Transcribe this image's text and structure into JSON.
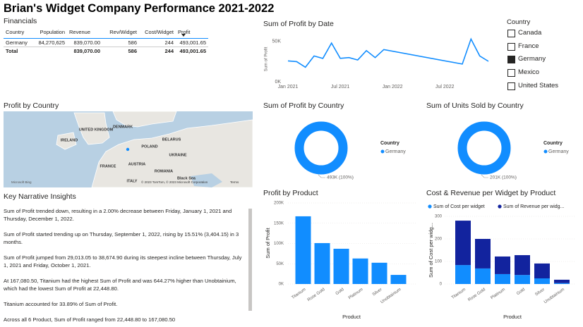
{
  "header": {
    "title": "Brian's Widget Company Performance 2021-2022"
  },
  "table": {
    "title": "Financials",
    "columns": [
      "Country",
      "Population",
      "Revenue",
      "Rev/Widget",
      "Cost/Widget",
      "Profit"
    ],
    "rows": [
      [
        "Germany",
        "84,270,625",
        "839,070.00",
        "586",
        "244",
        "493,001.65"
      ]
    ],
    "total": {
      "label": "Total",
      "revenue": "839,070.00",
      "rev_widget": "586",
      "cost_widget": "244",
      "profit": "493,001.65"
    }
  },
  "slicer": {
    "title": "Country",
    "items": [
      "Canada",
      "France",
      "Germany",
      "Mexico",
      "United States"
    ],
    "selected": [
      false,
      false,
      true,
      false,
      false
    ]
  },
  "map": {
    "title": "Profit by Country",
    "labels": [
      "UNITED KINGDOM",
      "IRELAND",
      "DENMARK",
      "BELARUS",
      "POLAND",
      "UKRAINE",
      "FRANCE",
      "AUSTRIA",
      "ROMANIA",
      "ITALY",
      "Black Sea"
    ],
    "provider": "Microsoft Bing",
    "attribution": "© 2023 TomTom, © 2023 Microsoft Corporation",
    "terms": "Terms"
  },
  "narrative": {
    "title": "Key Narrative Insights",
    "paragraphs": [
      "Sum of Profit trended down, resulting in a 2.00% decrease between Friday, January 1, 2021 and Thursday, December 1, 2022.",
      "Sum of Profit started trending up on Thursday, September 1, 2022, rising by 15.51% (3,404.15) in 3 months.",
      "Sum of Profit jumped from 29,013.05 to 38,674.90 during its steepest incline between Thursday, July 1, 2021 and Friday, October 1, 2021.",
      "At 167,080.50, Titanium had the highest Sum of Profit and was 644.27% higher than Unobtainium, which had the lowest Sum of Profit at 22,448.80.",
      "Titanium accounted for 33.89% of Sum of Profit.",
      "Across all 6 Product, Sum of Profit ranged from 22,448.80 to 167,080.50"
    ]
  },
  "chart_data": [
    {
      "type": "line",
      "title": "Sum of Profit by Date",
      "y_label": "Sum of Profit",
      "color": "#118DFF",
      "x": [
        "2021-01",
        "2021-02",
        "2021-03",
        "2021-04",
        "2021-05",
        "2021-06",
        "2021-07",
        "2021-08",
        "2021-09",
        "2021-10",
        "2021-11",
        "2021-12",
        "2022-09",
        "2022-10",
        "2022-11",
        "2022-12"
      ],
      "values": [
        25869.6,
        25000,
        18000,
        32000,
        29000,
        48000,
        29013.05,
        30000,
        27000,
        38674.9,
        30000,
        40000,
        21948,
        53000,
        32000,
        25352.2
      ],
      "xlim": [
        "2021-01",
        "2022-12"
      ],
      "xticks": [
        {
          "value": "2021-01",
          "label": "Jan 2021"
        },
        {
          "value": "2021-07",
          "label": "Jul 2021"
        },
        {
          "value": "2022-01",
          "label": "Jan 2022"
        },
        {
          "value": "2022-07",
          "label": "Jul 2022"
        }
      ],
      "ylim": [
        0,
        56000
      ],
      "yticks": [
        {
          "value": 0,
          "label": "0K"
        },
        {
          "value": 50000,
          "label": "50K"
        }
      ]
    },
    {
      "type": "donut",
      "title": "Sum of Profit by Country",
      "legend_title": "Country",
      "categories": [
        "Germany"
      ],
      "values": [
        493001.65
      ],
      "value_labels": [
        "493K (100%)"
      ],
      "color": "#118DFF"
    },
    {
      "type": "donut",
      "title": "Sum of Units Sold by Country",
      "legend_title": "Country",
      "categories": [
        "Germany"
      ],
      "values": [
        201000
      ],
      "value_labels": [
        "201K (100%)"
      ],
      "color": "#118DFF"
    },
    {
      "type": "bar",
      "title": "Profit by Product",
      "x_label": "Product",
      "y_label": "Sum of Profit",
      "color": "#118DFF",
      "categories": [
        "Titanium",
        "Rose Gold",
        "Gold",
        "Platinum",
        "Silver",
        "Unobtainium"
      ],
      "values": [
        167080.5,
        101000,
        87000,
        63000,
        52500,
        22448.8
      ],
      "ylim": [
        0,
        200000
      ],
      "yticks": [
        {
          "value": 0,
          "label": "0K"
        },
        {
          "value": 50000,
          "label": "50K"
        },
        {
          "value": 100000,
          "label": "100K"
        },
        {
          "value": 150000,
          "label": "150K"
        },
        {
          "value": 200000,
          "label": "200K"
        }
      ],
      "grid": true
    },
    {
      "type": "stacked_bar",
      "title": "Cost & Revenue per Widget by Product",
      "x_label": "Product",
      "y_label": "Sum of Cost per widg...",
      "categories": [
        "Titanium",
        "Rose Gold",
        "Platinum",
        "Gold",
        "Silver",
        "Unobtainium"
      ],
      "series": [
        {
          "name": "Sum of Cost per widget",
          "color": "#118DFF",
          "values": [
            84,
            69,
            44,
            40,
            25,
            4
          ]
        },
        {
          "name": "Sum of Revenue per widg...",
          "color": "#12239E",
          "values": [
            197,
            131,
            78,
            88,
            66,
            15
          ]
        }
      ],
      "ylim": [
        0,
        300
      ],
      "yticks": [
        0,
        100,
        200,
        300
      ],
      "grid": true
    }
  ]
}
